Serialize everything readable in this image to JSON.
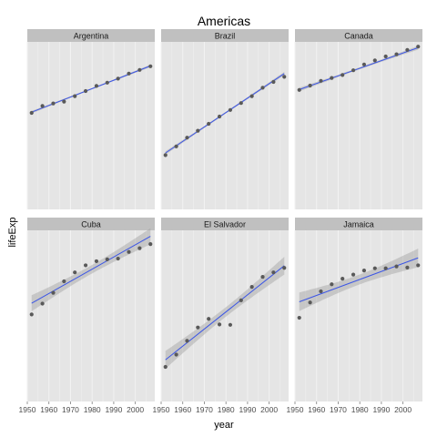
{
  "chart_data": {
    "type": "scatter",
    "title": "Americas",
    "xlabel": "year",
    "ylabel": "lifeExp",
    "x_ticks": [
      1950,
      1960,
      1970,
      1980,
      1990,
      2000
    ],
    "xlim": [
      1950,
      2009
    ],
    "ylim": [
      36,
      82
    ],
    "grid": true,
    "smoother": "linear fit with confidence band",
    "colors": {
      "panel_bg": "#e5e5e5",
      "grid": "#f2f2f2",
      "strip_bg": "#c0c0c0",
      "point": "#595959",
      "fit_line": "#3b55e6",
      "band": "#999999"
    },
    "facets": [
      {
        "name": "Argentina",
        "x": [
          1952,
          1957,
          1962,
          1967,
          1972,
          1977,
          1982,
          1987,
          1992,
          1997,
          2002,
          2007
        ],
        "y": [
          62.5,
          64.4,
          65.1,
          65.6,
          67.1,
          68.5,
          69.9,
          70.8,
          71.9,
          73.3,
          74.3,
          75.3
        ],
        "fit": [
          62.7,
          75.4
        ]
      },
      {
        "name": "Brazil",
        "x": [
          1952,
          1957,
          1962,
          1967,
          1972,
          1977,
          1982,
          1987,
          1992,
          1997,
          2002,
          2007
        ],
        "y": [
          50.9,
          53.3,
          55.7,
          57.6,
          59.5,
          61.5,
          63.3,
          65.2,
          67.1,
          69.4,
          71.0,
          72.4
        ],
        "fit": [
          51.5,
          73.3
        ]
      },
      {
        "name": "Canada",
        "x": [
          1952,
          1957,
          1962,
          1967,
          1972,
          1977,
          1982,
          1987,
          1992,
          1997,
          2002,
          2007
        ],
        "y": [
          68.8,
          70.0,
          71.3,
          72.1,
          72.9,
          74.2,
          75.8,
          76.9,
          78.0,
          78.6,
          79.8,
          80.7
        ],
        "fit": [
          68.9,
          80.4
        ]
      },
      {
        "name": "Cuba",
        "x": [
          1952,
          1957,
          1962,
          1967,
          1972,
          1977,
          1982,
          1987,
          1992,
          1997,
          2002,
          2007
        ],
        "y": [
          59.4,
          62.3,
          65.2,
          68.3,
          70.7,
          72.6,
          73.7,
          74.2,
          74.4,
          76.2,
          77.2,
          78.3
        ],
        "fit": [
          62.4,
          80.4
        ]
      },
      {
        "name": "El Salvador",
        "x": [
          1952,
          1957,
          1962,
          1967,
          1972,
          1977,
          1982,
          1987,
          1992,
          1997,
          2002,
          2007
        ],
        "y": [
          45.3,
          48.6,
          52.3,
          55.9,
          58.2,
          56.7,
          56.6,
          63.2,
          66.8,
          69.5,
          70.7,
          71.9
        ],
        "fit": [
          47.2,
          72.5
        ]
      },
      {
        "name": "Jamaica",
        "x": [
          1952,
          1957,
          1962,
          1967,
          1972,
          1977,
          1982,
          1987,
          1992,
          1997,
          2002,
          2007
        ],
        "y": [
          58.5,
          62.6,
          65.6,
          67.5,
          69.0,
          70.1,
          71.2,
          71.8,
          71.8,
          72.3,
          72.0,
          72.6
        ],
        "fit": [
          62.8,
          74.6
        ]
      }
    ]
  }
}
